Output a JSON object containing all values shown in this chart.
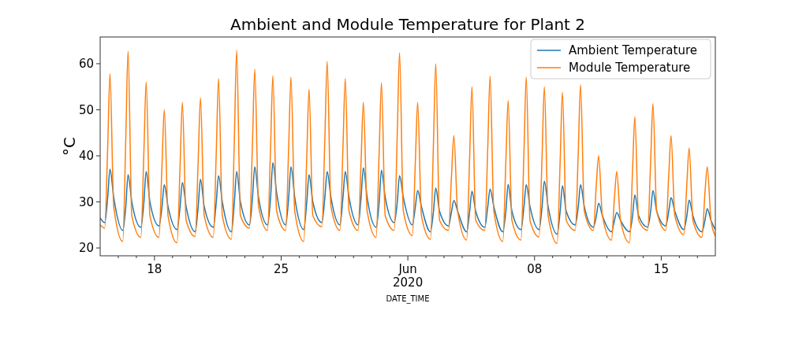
{
  "chart_data": {
    "type": "line",
    "title": "Ambient and Module Temperature for Plant 2",
    "xlabel": "DATE_TIME",
    "ylabel": "°C",
    "x": [
      "2020-05-15T00:00",
      "2020-05-15T06:00",
      "2020-05-15T10:00",
      "2020-05-15T13:00",
      "2020-05-15T18:00",
      "2020-05-16T06:00",
      "2020-05-16T10:00",
      "2020-05-16T13:00",
      "2020-05-16T18:00",
      "2020-05-17T06:00",
      "2020-05-17T10:00",
      "2020-05-17T13:00",
      "2020-05-17T18:00",
      "2020-05-18T06:00",
      "2020-05-18T10:00",
      "2020-05-18T13:00",
      "2020-05-18T18:00",
      "2020-05-19T06:00",
      "2020-05-19T10:00",
      "2020-05-19T13:00",
      "2020-05-19T18:00",
      "2020-05-20T06:00",
      "2020-05-20T10:00",
      "2020-05-20T13:00",
      "2020-05-20T18:00",
      "2020-05-21T06:00",
      "2020-05-21T10:00",
      "2020-05-21T13:00",
      "2020-05-21T18:00",
      "2020-05-22T06:00",
      "2020-05-22T10:00",
      "2020-05-22T13:00",
      "2020-05-22T18:00",
      "2020-05-23T06:00",
      "2020-05-23T10:00",
      "2020-05-23T13:00",
      "2020-05-23T18:00",
      "2020-05-24T06:00",
      "2020-05-24T10:00",
      "2020-05-24T13:00",
      "2020-05-24T18:00",
      "2020-05-25T06:00",
      "2020-05-25T10:00",
      "2020-05-25T13:00",
      "2020-05-25T18:00",
      "2020-05-26T06:00",
      "2020-05-26T10:00",
      "2020-05-26T13:00",
      "2020-05-26T18:00",
      "2020-05-27T06:00",
      "2020-05-27T10:00",
      "2020-05-27T13:00",
      "2020-05-27T18:00",
      "2020-05-28T06:00",
      "2020-05-28T10:00",
      "2020-05-28T13:00",
      "2020-05-28T18:00",
      "2020-05-29T06:00",
      "2020-05-29T10:00",
      "2020-05-29T13:00",
      "2020-05-29T18:00",
      "2020-05-30T06:00",
      "2020-05-30T10:00",
      "2020-05-30T13:00",
      "2020-05-30T18:00",
      "2020-05-31T06:00",
      "2020-05-31T10:00",
      "2020-05-31T13:00",
      "2020-05-31T18:00",
      "2020-06-01T06:00",
      "2020-06-01T10:00",
      "2020-06-01T13:00",
      "2020-06-01T18:00",
      "2020-06-02T06:00",
      "2020-06-02T10:00",
      "2020-06-02T13:00",
      "2020-06-02T18:00",
      "2020-06-03T06:00",
      "2020-06-03T10:00",
      "2020-06-03T13:00",
      "2020-06-03T18:00",
      "2020-06-04T06:00",
      "2020-06-04T10:00",
      "2020-06-04T13:00",
      "2020-06-04T18:00",
      "2020-06-05T06:00",
      "2020-06-05T10:00",
      "2020-06-05T13:00",
      "2020-06-05T18:00",
      "2020-06-06T06:00",
      "2020-06-06T10:00",
      "2020-06-06T13:00",
      "2020-06-06T18:00",
      "2020-06-07T06:00",
      "2020-06-07T10:00",
      "2020-06-07T13:00",
      "2020-06-07T18:00",
      "2020-06-08T06:00",
      "2020-06-08T10:00",
      "2020-06-08T13:00",
      "2020-06-08T18:00",
      "2020-06-09T06:00",
      "2020-06-09T10:00",
      "2020-06-09T13:00",
      "2020-06-09T18:00",
      "2020-06-10T06:00",
      "2020-06-10T10:00",
      "2020-06-10T13:00",
      "2020-06-10T18:00",
      "2020-06-11T06:00",
      "2020-06-11T10:00",
      "2020-06-11T13:00",
      "2020-06-11T18:00",
      "2020-06-12T06:00",
      "2020-06-12T10:00",
      "2020-06-12T13:00",
      "2020-06-12T18:00",
      "2020-06-13T06:00",
      "2020-06-13T10:00",
      "2020-06-13T13:00",
      "2020-06-13T18:00",
      "2020-06-14T06:00",
      "2020-06-14T10:00",
      "2020-06-14T13:00",
      "2020-06-14T18:00",
      "2020-06-15T06:00",
      "2020-06-15T10:00",
      "2020-06-15T13:00",
      "2020-06-15T18:00",
      "2020-06-16T06:00",
      "2020-06-16T10:00",
      "2020-06-16T13:00",
      "2020-06-16T18:00",
      "2020-06-17T06:00",
      "2020-06-17T10:00",
      "2020-06-17T13:00",
      "2020-06-17T18:00",
      "2020-06-17T23:45"
    ],
    "series": [
      {
        "name": "Ambient Temperature",
        "color": "#1f77b4",
        "values": [
          26.5,
          25.5,
          31,
          37.1,
          31,
          23.8,
          29,
          35.9,
          30,
          24.5,
          30,
          36.6,
          30,
          24.8,
          29,
          33.7,
          29,
          24,
          29,
          34.2,
          29,
          23.5,
          29,
          34.9,
          29,
          24.5,
          30,
          35.7,
          30,
          23.5,
          30,
          36.6,
          30,
          25,
          31,
          37.6,
          31,
          25,
          31,
          38.5,
          32,
          25,
          31,
          37.6,
          31,
          24,
          30,
          35.9,
          30,
          25.5,
          31,
          36.6,
          31,
          25,
          31,
          36.6,
          31,
          25,
          31,
          37.4,
          31,
          24.5,
          30,
          36.9,
          31,
          25.5,
          30,
          35.7,
          31,
          25,
          29,
          32.5,
          29,
          23.5,
          28,
          33,
          28,
          24.8,
          28,
          30.3,
          28,
          23.5,
          28,
          32.3,
          28,
          24.5,
          29,
          32.8,
          29,
          23.5,
          28,
          33.8,
          28,
          24,
          29,
          33.7,
          29,
          24,
          29,
          34.5,
          29,
          23,
          28,
          33.5,
          28,
          25,
          29,
          33.7,
          29,
          24.5,
          27,
          29.7,
          27,
          23.5,
          26,
          27.7,
          26,
          23.5,
          27,
          31.5,
          27,
          24.5,
          28,
          32.5,
          28,
          24.8,
          28,
          30.9,
          28,
          24,
          27,
          30.4,
          27,
          23.5,
          26,
          28.5,
          26,
          24
        ]
      },
      {
        "name": "Module Temperature",
        "color": "#ff7f0e",
        "values": [
          25,
          24.3,
          42,
          57.8,
          29,
          21.4,
          44,
          62.7,
          27,
          22.3,
          41,
          56,
          27,
          22.3,
          38,
          50,
          27,
          21.1,
          38,
          51.6,
          26,
          22.5,
          39,
          52.6,
          27,
          22.3,
          41,
          56.8,
          27,
          21.9,
          44,
          62.9,
          27,
          24.3,
          43,
          58.8,
          29,
          23.8,
          42,
          57.4,
          28,
          23.8,
          42,
          57.1,
          28,
          21.4,
          40,
          54.5,
          27,
          24.6,
          44,
          60.5,
          29,
          23.8,
          42,
          56.8,
          28,
          23.8,
          39,
          51.6,
          28,
          22.3,
          41,
          55.9,
          27,
          23.8,
          45,
          62.4,
          28,
          22.7,
          39,
          51.6,
          27,
          21.9,
          43,
          60,
          26,
          23.8,
          36,
          44.4,
          28,
          21.7,
          40,
          55,
          26,
          23.8,
          42,
          57.3,
          28,
          21.4,
          39,
          52,
          26,
          21.7,
          41,
          57.1,
          26,
          22.4,
          40,
          55,
          27,
          21,
          39,
          53.8,
          26,
          23.8,
          41,
          55.4,
          28,
          23.8,
          34,
          40,
          27,
          21.7,
          31,
          36.6,
          26,
          21.1,
          37,
          48.5,
          26,
          23.8,
          39,
          51.3,
          28,
          23.8,
          36,
          44.4,
          27,
          22.9,
          34,
          41.7,
          26,
          22.3,
          32,
          37.6,
          26,
          22.6
        ]
      }
    ],
    "xlim": [
      "2020-05-15T00:00",
      "2020-06-17T23:45"
    ],
    "xticks": [
      {
        "value": "2020-05-16",
        "label": null
      },
      {
        "value": "2020-05-17",
        "label": null
      },
      {
        "value": "2020-05-18",
        "label": "18"
      },
      {
        "value": "2020-05-19",
        "label": null
      },
      {
        "value": "2020-05-20",
        "label": null
      },
      {
        "value": "2020-05-21",
        "label": null
      },
      {
        "value": "2020-05-22",
        "label": null
      },
      {
        "value": "2020-05-23",
        "label": null
      },
      {
        "value": "2020-05-24",
        "label": null
      },
      {
        "value": "2020-05-25",
        "label": "25"
      },
      {
        "value": "2020-05-26",
        "label": null
      },
      {
        "value": "2020-05-27",
        "label": null
      },
      {
        "value": "2020-05-28",
        "label": null
      },
      {
        "value": "2020-05-29",
        "label": null
      },
      {
        "value": "2020-05-30",
        "label": null
      },
      {
        "value": "2020-05-31",
        "label": null
      },
      {
        "value": "2020-06-01",
        "label": "Jun\n2020"
      },
      {
        "value": "2020-06-02",
        "label": null
      },
      {
        "value": "2020-06-03",
        "label": null
      },
      {
        "value": "2020-06-04",
        "label": null
      },
      {
        "value": "2020-06-05",
        "label": null
      },
      {
        "value": "2020-06-06",
        "label": null
      },
      {
        "value": "2020-06-07",
        "label": null
      },
      {
        "value": "2020-06-08",
        "label": "08"
      },
      {
        "value": "2020-06-09",
        "label": null
      },
      {
        "value": "2020-06-10",
        "label": null
      },
      {
        "value": "2020-06-11",
        "label": null
      },
      {
        "value": "2020-06-12",
        "label": null
      },
      {
        "value": "2020-06-13",
        "label": null
      },
      {
        "value": "2020-06-14",
        "label": null
      },
      {
        "value": "2020-06-15",
        "label": "15"
      },
      {
        "value": "2020-06-16",
        "label": null
      },
      {
        "value": "2020-06-17",
        "label": null
      }
    ],
    "ylim": [
      18.3,
      65.8
    ],
    "yticks": [
      20,
      30,
      40,
      50,
      60
    ],
    "legend": "top right",
    "grid": false
  }
}
